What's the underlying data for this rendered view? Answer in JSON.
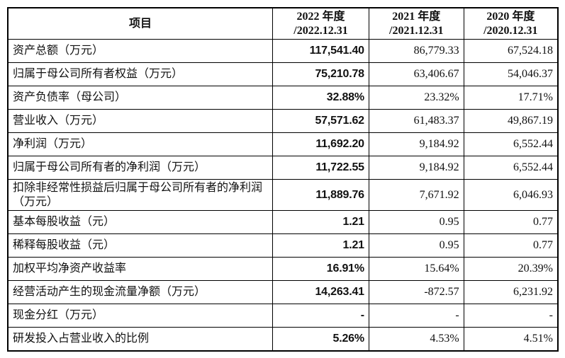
{
  "table": {
    "headers": [
      {
        "line1": "项目",
        "line2": ""
      },
      {
        "line1": "2022 年度",
        "line2": "/2022.12.31"
      },
      {
        "line1": "2021 年度",
        "line2": "/2021.12.31"
      },
      {
        "line1": "2020 年度",
        "line2": "/2020.12.31"
      }
    ],
    "rows": [
      {
        "item": "资产总额（万元）",
        "y2022": "117,541.40",
        "y2021": "86,779.33",
        "y2020": "67,524.18"
      },
      {
        "item": "归属于母公司所有者权益（万元）",
        "y2022": "75,210.78",
        "y2021": "63,406.67",
        "y2020": "54,046.37"
      },
      {
        "item": "资产负债率（母公司）",
        "y2022": "32.88%",
        "y2021": "23.32%",
        "y2020": "17.71%"
      },
      {
        "item": "营业收入（万元）",
        "y2022": "57,571.62",
        "y2021": "61,483.37",
        "y2020": "49,867.19"
      },
      {
        "item": "净利润（万元）",
        "y2022": "11,692.20",
        "y2021": "9,184.92",
        "y2020": "6,552.44"
      },
      {
        "item": "归属于母公司所有者的净利润（万元）",
        "y2022": "11,722.55",
        "y2021": "9,184.92",
        "y2020": "6,552.44"
      },
      {
        "item": "扣除非经常性损益后归属于母公司所有者的净利润（万元）",
        "y2022": "11,889.76",
        "y2021": "7,671.92",
        "y2020": "6,046.93"
      },
      {
        "item": "基本每股收益（元）",
        "y2022": "1.21",
        "y2021": "0.95",
        "y2020": "0.77"
      },
      {
        "item": "稀释每股收益（元）",
        "y2022": "1.21",
        "y2021": "0.95",
        "y2020": "0.77"
      },
      {
        "item": "加权平均净资产收益率",
        "y2022": "16.91%",
        "y2021": "15.64%",
        "y2020": "20.39%"
      },
      {
        "item": "经营活动产生的现金流量净额（万元）",
        "y2022": "14,263.41",
        "y2021": "-872.57",
        "y2020": "6,231.92"
      },
      {
        "item": "现金分红（万元）",
        "y2022": "-",
        "y2021": "-",
        "y2020": "-"
      },
      {
        "item": "研发投入占营业收入的比例",
        "y2022": "5.26%",
        "y2021": "4.53%",
        "y2020": "4.51%"
      }
    ]
  }
}
